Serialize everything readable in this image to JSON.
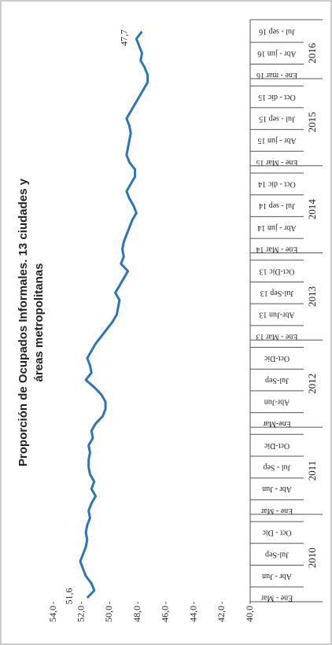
{
  "chart_data": {
    "type": "line",
    "title": "Proporción de Ocupados Informales. 13 ciudades y áreas metropolitanas",
    "categories": [
      "Ene - Mar",
      null,
      null,
      "Abr - Jun",
      null,
      null,
      "Jul-Sep",
      null,
      null,
      "Oct - Dic",
      null,
      null,
      "Ene - Mar",
      null,
      null,
      "Abr - Jun",
      null,
      null,
      "Jul - Sep",
      null,
      null,
      "Oct-Dic",
      null,
      null,
      "Ene-Mar",
      null,
      null,
      "Abr-Jun",
      null,
      null,
      "Jul-Sep",
      null,
      null,
      "Oct-Dic",
      null,
      null,
      "Ene - Mar 13",
      null,
      null,
      "Abr-Jun 13",
      null,
      null,
      "Jul-Sep 13",
      null,
      null,
      "Oct-Dic 13",
      null,
      null,
      "Ene - Mar 14",
      null,
      null,
      "Abr - jun 14",
      null,
      null,
      "Jul - sep 14",
      null,
      null,
      "Oct - dic 14",
      null,
      null,
      "Ene - Mar 15",
      null,
      null,
      "Abr - jun 15",
      null,
      null,
      "Jul - sep 15",
      null,
      null,
      "Oct - dic 15",
      null,
      null,
      "Ene - mar 16",
      null,
      null,
      "Abr - jun 16",
      null,
      null,
      "Jul - sep 16"
    ],
    "years": [
      "2010",
      "2011",
      "2012",
      "2013",
      "2014",
      "2015",
      "2016"
    ],
    "values": [
      51.6,
      51.1,
      51.3,
      51.7,
      51.9,
      52.1,
      51.9,
      51.7,
      51.6,
      51.7,
      51.6,
      51.4,
      51.5,
      51.3,
      51.0,
      51.3,
      51.1,
      51.4,
      51.5,
      51.5,
      51.4,
      51.5,
      51.2,
      51.3,
      51.0,
      50.5,
      50.3,
      50.3,
      50.6,
      51.1,
      51.7,
      51.3,
      51.4,
      51.6,
      51.3,
      51.0,
      50.6,
      50.2,
      49.8,
      49.5,
      49.4,
      49.3,
      49.6,
      49.3,
      49.0,
      48.7,
      49.2,
      49.0,
      49.1,
      49.0,
      48.8,
      48.6,
      48.4,
      48.1,
      48.3,
      48.6,
      48.8,
      48.5,
      48.2,
      48.2,
      48.6,
      48.8,
      48.7,
      48.6,
      48.5,
      48.6,
      48.8,
      48.5,
      48.2,
      47.9,
      47.6,
      47.3,
      47.3,
      47.5,
      47.8,
      47.7,
      47.9,
      48.1,
      47.7
    ],
    "value_labels": [
      "51,6",
      null,
      null,
      null,
      null,
      null,
      null,
      null,
      null,
      null,
      null,
      null,
      null,
      null,
      null,
      null,
      null,
      null,
      null,
      null,
      null,
      null,
      null,
      null,
      null,
      null,
      null,
      null,
      null,
      null,
      null,
      null,
      null,
      null,
      null,
      null,
      null,
      null,
      null,
      null,
      null,
      null,
      null,
      null,
      null,
      null,
      null,
      null,
      null,
      null,
      null,
      null,
      null,
      null,
      null,
      null,
      null,
      null,
      null,
      null,
      null,
      null,
      null,
      null,
      null,
      null,
      null,
      null,
      null,
      null,
      null,
      null,
      null,
      null,
      null,
      null,
      null,
      null,
      "47,7"
    ],
    "color": "#2e75b6",
    "ylim": [
      40,
      54
    ],
    "yticks": [
      {
        "value": 40,
        "label": "40,0"
      },
      {
        "value": 42,
        "label": "42,0"
      },
      {
        "value": 44,
        "label": "44,0"
      },
      {
        "value": 46,
        "label": "46,0"
      },
      {
        "value": 48,
        "label": "48,0"
      },
      {
        "value": 50,
        "label": "50,0"
      },
      {
        "value": 52,
        "label": "52,0"
      },
      {
        "value": 54,
        "label": "54,0"
      }
    ],
    "grid": false
  }
}
